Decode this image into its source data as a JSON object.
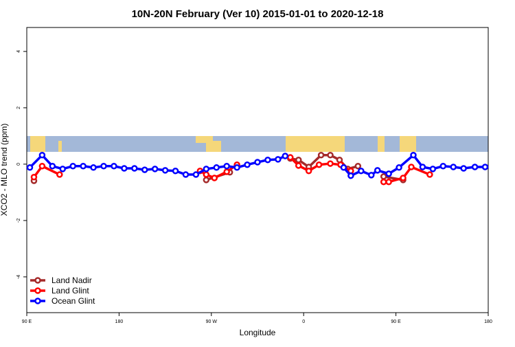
{
  "chart_data": {
    "type": "line",
    "title": "10N-20N February (Ver 10)   2015-01-01 to 2020-12-18",
    "x_label": "Longitude",
    "y_label": "XCO2 - MLO trend (ppm)",
    "xlim": [
      90,
      540
    ],
    "ylim": [
      -5.27,
      4.85
    ],
    "xticks": [
      {
        "value": 90,
        "label": "90 E"
      },
      180,
      {
        "value": 270,
        "label": "90 W"
      },
      {
        "value": 360,
        "label": "0"
      },
      {
        "value": 450,
        "label": "90 E"
      },
      180
    ],
    "yticks": [
      4,
      2,
      0,
      -2,
      -4
    ],
    "legend": "bottom-left",
    "series": [
      {
        "name": "Land Nadir",
        "color": "#a52a2a",
        "x": [
          97,
          106,
          200,
          265,
          288,
          300,
          347,
          355,
          365,
          377,
          386,
          395,
          403,
          413,
          425,
          438,
          457
        ],
        "values": [
          -0.59,
          null,
          null,
          -0.56,
          -0.29,
          null,
          0.2,
          0.15,
          -0.1,
          0.32,
          0.32,
          0.15,
          -0.17,
          -0.07,
          null,
          -0.44,
          -0.56
        ]
      },
      {
        "name": "Land Glint",
        "color": "#ff0000",
        "x": [
          97,
          105,
          122,
          200,
          259,
          265,
          273,
          285,
          295,
          320,
          347,
          355,
          365,
          375,
          386,
          396,
          406,
          420,
          438,
          443,
          457,
          465,
          483
        ],
        "values": [
          -0.46,
          -0.07,
          -0.37,
          null,
          -0.24,
          -0.37,
          -0.49,
          -0.27,
          -0.02,
          null,
          0.24,
          -0.05,
          -0.24,
          -0.02,
          0.02,
          -0.02,
          -0.24,
          null,
          -0.63,
          -0.63,
          -0.49,
          -0.1,
          -0.37
        ]
      },
      {
        "name": "Ocean Glint",
        "color": "#0000ff",
        "x": [
          93,
          105,
          115,
          125,
          135,
          145,
          155,
          165,
          175,
          185,
          195,
          205,
          215,
          225,
          235,
          245,
          255,
          265,
          275,
          285,
          295,
          305,
          315,
          325,
          335,
          342,
          370,
          399,
          406,
          416,
          426,
          432,
          443,
          453,
          467,
          476,
          486,
          496,
          506,
          516,
          527,
          537
        ],
        "values": [
          -0.12,
          0.32,
          -0.07,
          -0.17,
          -0.07,
          -0.07,
          -0.12,
          -0.07,
          -0.07,
          -0.15,
          -0.15,
          -0.2,
          -0.17,
          -0.22,
          -0.24,
          -0.37,
          -0.37,
          -0.17,
          -0.12,
          -0.07,
          -0.12,
          -0.02,
          0.07,
          0.15,
          0.17,
          0.29,
          null,
          -0.12,
          -0.41,
          -0.24,
          -0.39,
          -0.22,
          -0.34,
          -0.12,
          0.32,
          -0.1,
          -0.17,
          -0.07,
          -0.1,
          -0.15,
          -0.1,
          -0.1
        ]
      }
    ]
  }
}
